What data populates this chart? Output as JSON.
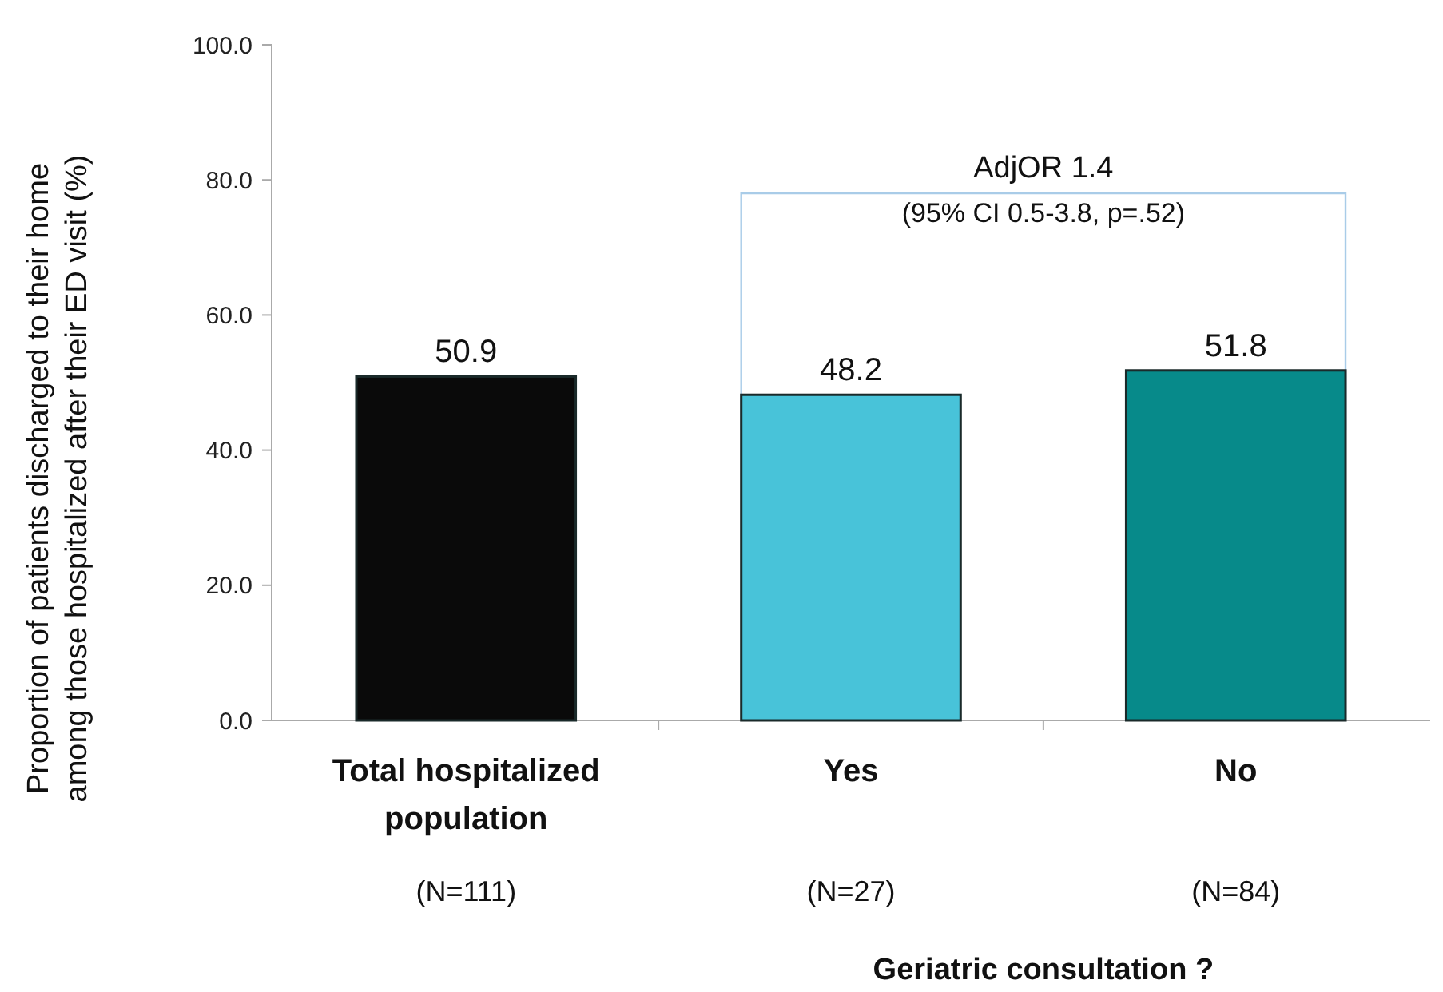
{
  "chart_data": {
    "type": "bar",
    "ylabel": "Proportion of patients discharged to their home among those hospitalized after their ED visit (%)",
    "xlabel": "Geriatric consultation ?",
    "categories": [
      "Total hospitalized population",
      "Yes",
      "No"
    ],
    "values": [
      50.9,
      48.2,
      51.8
    ],
    "colors": [
      "#0a0a0a",
      "#48c3d9",
      "#078a8a"
    ],
    "ylim": [
      0,
      100
    ],
    "yticks": [
      {
        "value": 0,
        "label": "0.0"
      },
      {
        "value": 20,
        "label": "20.0"
      },
      {
        "value": 40,
        "label": "40.0"
      },
      {
        "value": 60,
        "label": "60.0"
      },
      {
        "value": 80,
        "label": "80.0"
      },
      {
        "value": 100,
        "label": "100.0"
      }
    ],
    "data_labels": true,
    "grid": false,
    "annotations": [
      "AdjOR 1.4",
      "(95% CI 0.5-3.8, p=.52)",
      "(N=111)",
      "(N=27)",
      "(N=84)"
    ]
  }
}
